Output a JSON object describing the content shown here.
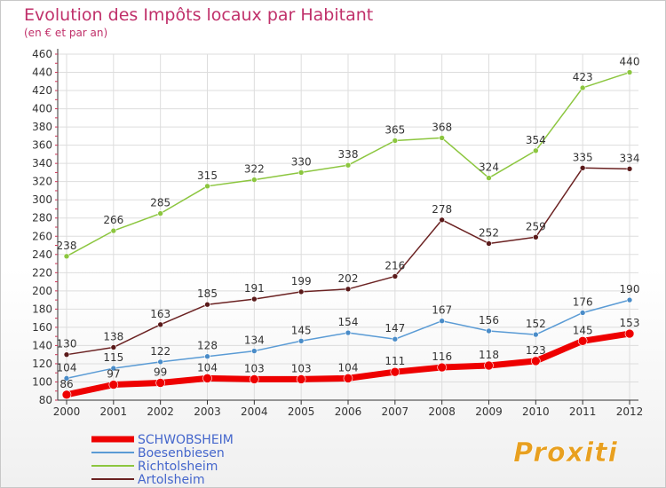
{
  "chart_data": {
    "type": "line",
    "title": "Evolution des Impôts locaux par Habitant",
    "subtitle": "(en € et par an)",
    "categories": [
      "2000",
      "2001",
      "2002",
      "2003",
      "2004",
      "2005",
      "2006",
      "2007",
      "2008",
      "2009",
      "2010",
      "2011",
      "2012"
    ],
    "ylim": [
      80,
      460
    ],
    "yticks": [
      80,
      100,
      120,
      140,
      160,
      180,
      200,
      220,
      240,
      260,
      280,
      300,
      320,
      340,
      360,
      380,
      400,
      420,
      440,
      460
    ],
    "grid": true,
    "legend_position": "bottom-left",
    "series": [
      {
        "name": "Richtolsheim",
        "color": "#8cc63f",
        "marker": "#8cc63f",
        "width": 1.5,
        "values": [
          238,
          266,
          285,
          315,
          322,
          330,
          338,
          365,
          368,
          324,
          354,
          423,
          440
        ]
      },
      {
        "name": "Artolsheim",
        "color": "#6b2222",
        "marker": "#5a1a1a",
        "width": 1.5,
        "values": [
          130,
          138,
          163,
          185,
          191,
          199,
          202,
          216,
          278,
          252,
          259,
          335,
          334
        ]
      },
      {
        "name": "Boesenbiesen",
        "color": "#5a9bd5",
        "marker": "#4a8cc8",
        "width": 1.5,
        "values": [
          104,
          115,
          122,
          128,
          134,
          145,
          154,
          147,
          167,
          156,
          152,
          176,
          190
        ]
      },
      {
        "name": "SCHWOBSHEIM",
        "color": "#ee0000",
        "marker": "#ee0000",
        "width": 7,
        "values": [
          86,
          97,
          99,
          104,
          103,
          103,
          104,
          111,
          116,
          118,
          123,
          145,
          153
        ]
      }
    ],
    "legend": [
      {
        "name": "SCHWOBSHEIM",
        "color": "#ee0000",
        "width": 7
      },
      {
        "name": "Boesenbiesen",
        "color": "#5a9bd5",
        "width": 2
      },
      {
        "name": "Richtolsheim",
        "color": "#8cc63f",
        "width": 2
      },
      {
        "name": "Artolsheim",
        "color": "#6b2222",
        "width": 2
      }
    ]
  },
  "logo": {
    "text": "Proxiti"
  },
  "colors": {
    "title": "#c0306a",
    "axis": "#333333",
    "grid": "#dddddd",
    "legend_text": "#4466cc",
    "label": "#333333"
  }
}
